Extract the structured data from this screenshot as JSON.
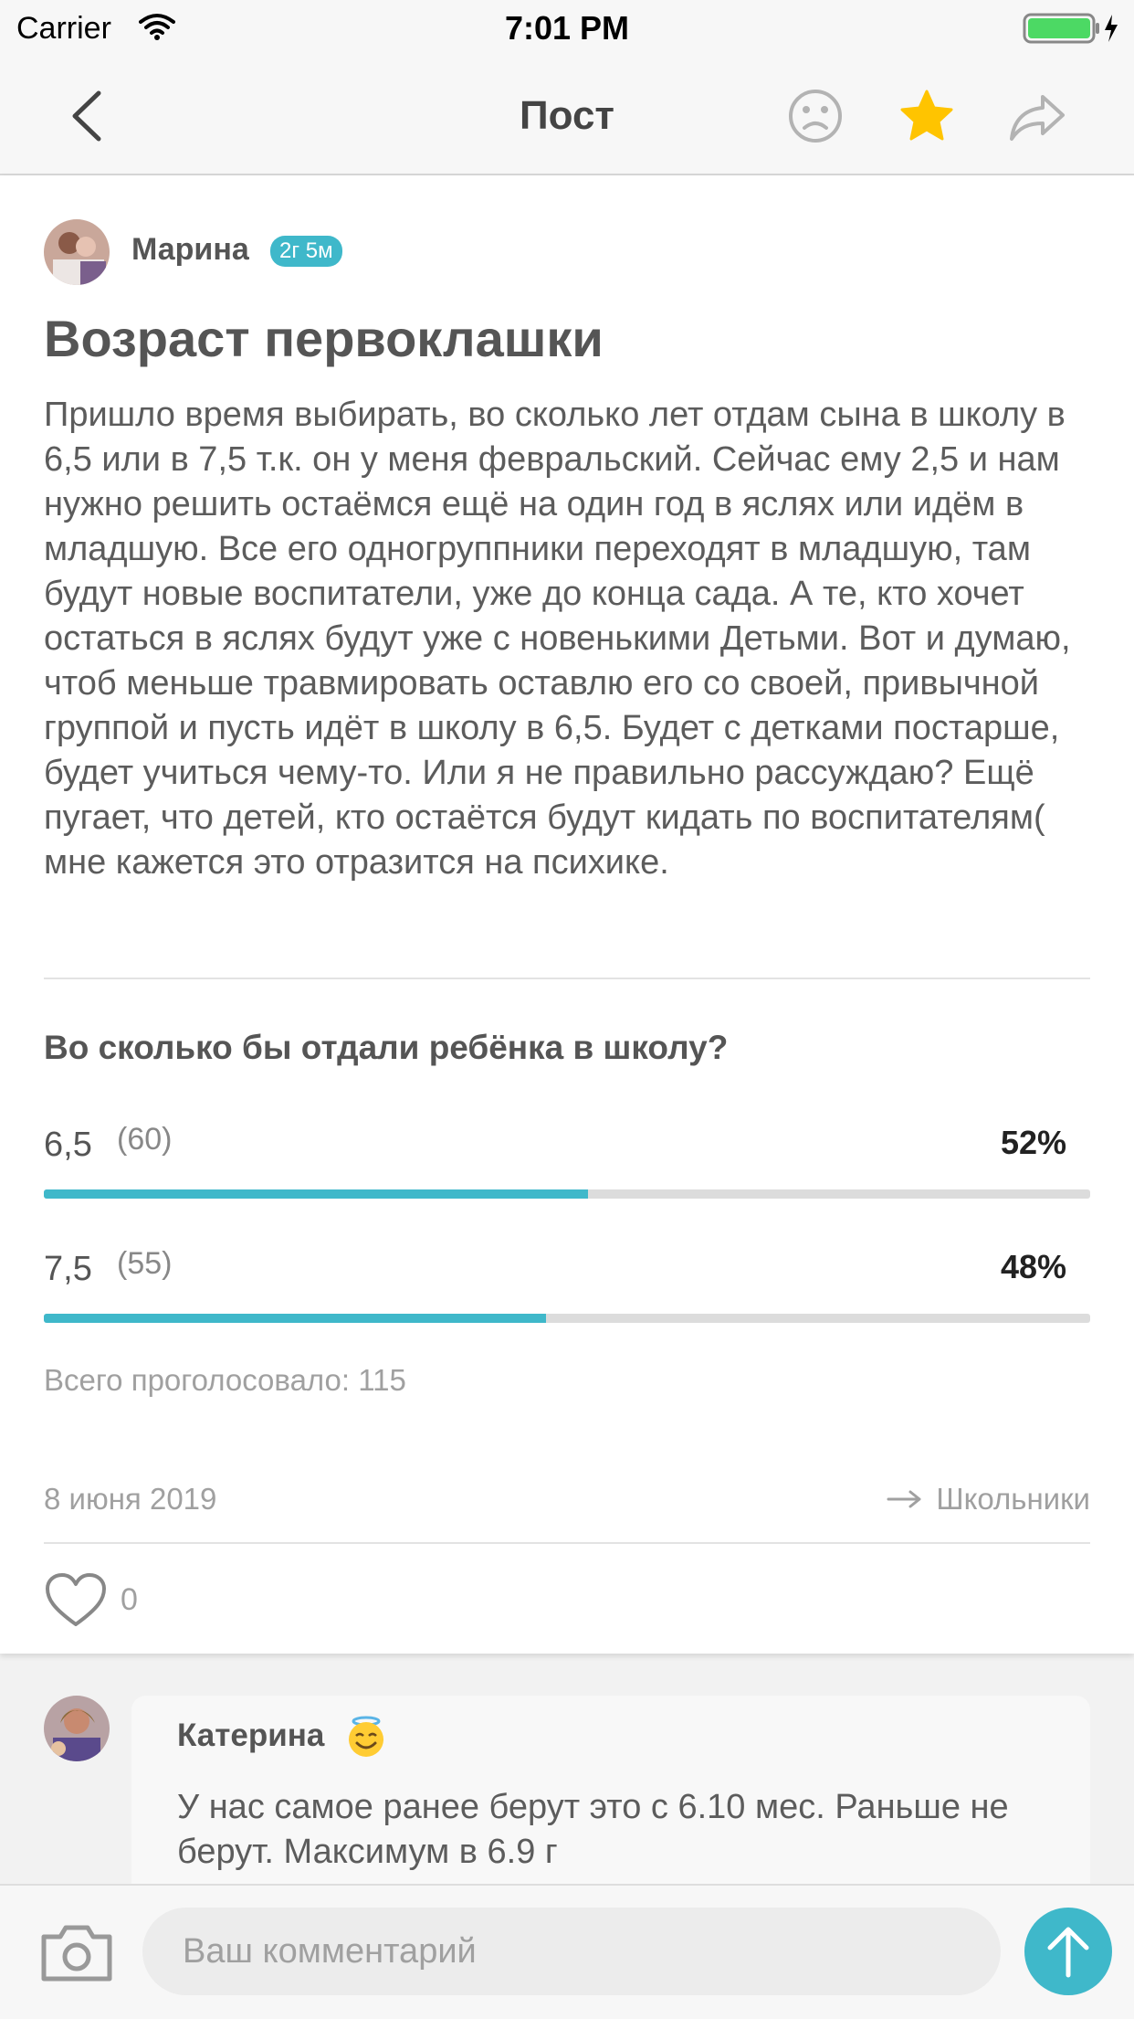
{
  "status_bar": {
    "carrier": "Carrier",
    "time": "7:01 PM"
  },
  "nav": {
    "title": "Пост"
  },
  "post": {
    "author": {
      "name": "Марина",
      "child_age": "2г 5м"
    },
    "title": "Возраст первоклашки",
    "body": "Пришло время выбирать, во сколько лет отдам сына в школу  в 6,5 или в 7,5 т.к. он у меня февральский. Сейчас ему 2,5 и нам нужно решить остаёмся ещё на один год в яслях или идём в младшую. Все его одногруппники переходят в младшую, там будут новые воспитатели, уже до конца сада. А те, кто хочет остаться в яслях будут уже с новенькими Детьми. Вот и думаю, чтоб меньше травмировать оставлю его со своей, привычной группой и пусть идёт в школу в 6,5. Будет с детками постарше, будет учиться чему-то. Или я не правильно рассуждаю? Ещё пугает, что детей, кто остаётся будут кидать по воспитателям( мне кажется это отразится на психике.",
    "poll": {
      "question": "Во сколько бы отдали ребёнка в школу?",
      "options": [
        {
          "label": "6,5",
          "count": "(60)",
          "percent": "52%",
          "fraction": 0.52
        },
        {
          "label": "7,5",
          "count": "(55)",
          "percent": "48%",
          "fraction": 0.48
        }
      ],
      "total": "Всего проголосовало: 115"
    },
    "date": "8 июня 2019",
    "category": "Школьники",
    "likes": "0"
  },
  "comment": {
    "author": "Катерина",
    "text": "У нас самое ранее берут это с 6.10 мес. Раньше не берут. Максимум в 6.9 г"
  },
  "composer": {
    "placeholder": "Ваш комментарий"
  },
  "colors": {
    "accent": "#3fb8ca",
    "star": "#ffc400"
  },
  "icons": {
    "back": "chevron-left-icon",
    "mood": "sad-face-icon",
    "favorite": "star-icon",
    "share": "share-arrow-icon",
    "like": "heart-icon",
    "camera": "camera-icon",
    "send": "arrow-up-icon",
    "category": "arrow-right-icon"
  }
}
